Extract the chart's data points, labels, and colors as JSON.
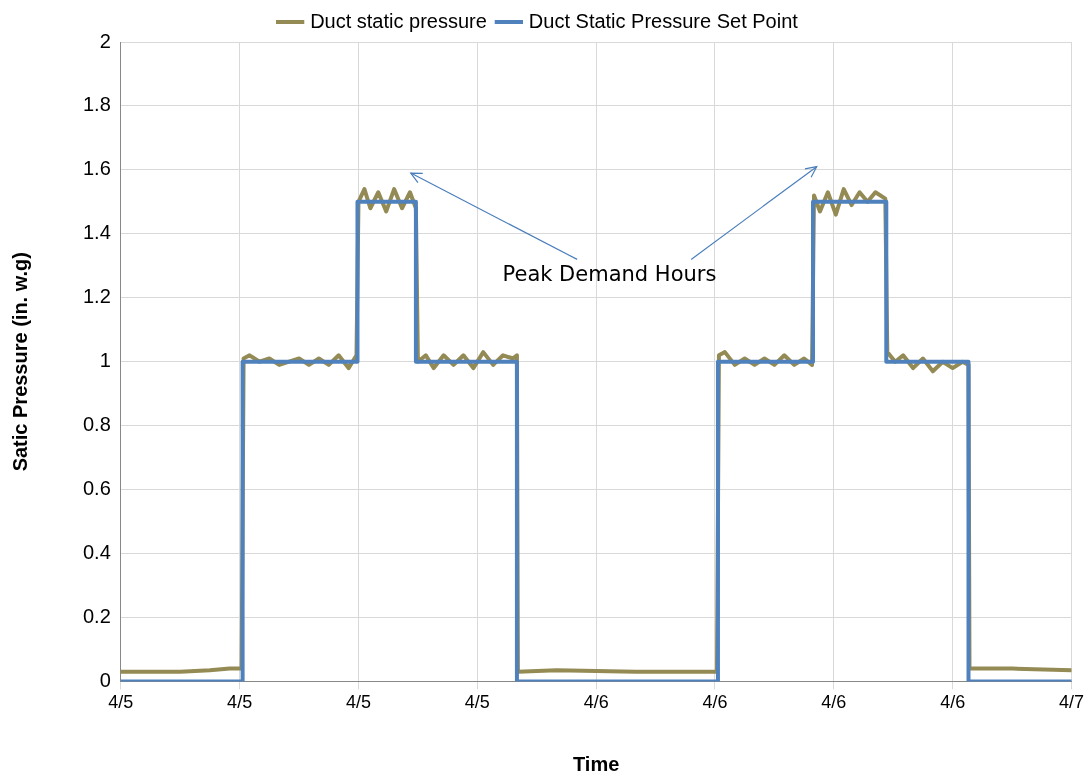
{
  "chart_data": {
    "type": "line",
    "xlabel": "Time",
    "ylabel": "Satic Pressure (in. w.g)",
    "annotations": [
      "Peak Demand Hours"
    ],
    "xlim": [
      "--04-05T00:00",
      "--04-07T00:00"
    ],
    "xticks": [
      {
        "value": "--04-05T00:00",
        "label": "4/5"
      },
      {
        "value": "--04-05T06:00",
        "label": "4/5"
      },
      {
        "value": "--04-05T12:00",
        "label": "4/5"
      },
      {
        "value": "--04-05T18:00",
        "label": "4/5"
      },
      {
        "value": "--04-06T00:00",
        "label": "4/6"
      },
      {
        "value": "--04-06T06:00",
        "label": "4/6"
      },
      {
        "value": "--04-06T12:00",
        "label": "4/6"
      },
      {
        "value": "--04-06T18:00",
        "label": "4/6"
      },
      {
        "value": "--04-07T00:00",
        "label": "4/7"
      }
    ],
    "ylim": [
      0,
      2
    ],
    "yticks": [
      0,
      0.2,
      0.4,
      0.6,
      0.8,
      1,
      1.2,
      1.4,
      1.6,
      1.8,
      2
    ],
    "grid": true,
    "legend": "top",
    "marker": "none",
    "line_style": "solid",
    "series": [
      {
        "name": "Duct static pressure",
        "color": "#948a54",
        "type": "line",
        "x": [
          "--04-05T00:00",
          "--04-05T03:00",
          "--04-05T04:30",
          "--04-05T05:30",
          "--04-05T06:06",
          "--04-05T06:12",
          "--04-05T06:30",
          "--04-05T07:00",
          "--04-05T07:30",
          "--04-05T08:00",
          "--04-05T08:30",
          "--04-05T09:00",
          "--04-05T09:30",
          "--04-05T10:00",
          "--04-05T10:30",
          "--04-05T11:00",
          "--04-05T11:30",
          "--04-05T11:54",
          "--04-05T12:00",
          "--04-05T12:18",
          "--04-05T12:36",
          "--04-05T13:00",
          "--04-05T13:24",
          "--04-05T13:48",
          "--04-05T14:12",
          "--04-05T14:36",
          "--04-05T14:54",
          "--04-05T15:00",
          "--04-05T15:24",
          "--04-05T15:48",
          "--04-05T16:18",
          "--04-05T16:48",
          "--04-05T17:18",
          "--04-05T17:48",
          "--04-05T18:18",
          "--04-05T18:48",
          "--04-05T19:18",
          "--04-05T19:48",
          "--04-05T20:00",
          "--04-05T20:03",
          "--04-05T22:00",
          "--04-06T02:00",
          "--04-06T06:06",
          "--04-06T06:12",
          "--04-06T06:30",
          "--04-06T07:00",
          "--04-06T07:30",
          "--04-06T08:00",
          "--04-06T08:30",
          "--04-06T09:00",
          "--04-06T09:30",
          "--04-06T10:00",
          "--04-06T10:30",
          "--04-06T10:54",
          "--04-06T11:00",
          "--04-06T11:18",
          "--04-06T11:42",
          "--04-06T12:06",
          "--04-06T12:30",
          "--04-06T12:54",
          "--04-06T13:18",
          "--04-06T13:42",
          "--04-06T14:06",
          "--04-06T14:36",
          "--04-06T14:42",
          "--04-06T15:06",
          "--04-06T15:30",
          "--04-06T16:00",
          "--04-06T16:30",
          "--04-06T17:00",
          "--04-06T17:30",
          "--04-06T18:00",
          "--04-06T18:30",
          "--04-06T18:48",
          "--04-06T18:51",
          "--04-06T21:00",
          "--04-07T00:00"
        ],
        "values": [
          0.03,
          0.03,
          0.035,
          0.04,
          0.04,
          1.01,
          1.02,
          1,
          1.01,
          0.99,
          1,
          1.01,
          0.99,
          1.01,
          0.99,
          1.02,
          0.98,
          1.02,
          1.5,
          1.54,
          1.48,
          1.53,
          1.47,
          1.54,
          1.48,
          1.53,
          1.48,
          1,
          1.02,
          0.98,
          1.02,
          0.99,
          1.02,
          0.98,
          1.03,
          0.99,
          1.02,
          1.01,
          1.02,
          0.03,
          0.035,
          0.03,
          0.03,
          1.02,
          1.03,
          0.99,
          1.01,
          0.99,
          1.01,
          0.99,
          1.02,
          0.99,
          1.01,
          0.99,
          1.52,
          1.47,
          1.53,
          1.46,
          1.54,
          1.49,
          1.53,
          1.5,
          1.53,
          1.51,
          1.03,
          1,
          1.02,
          0.98,
          1.01,
          0.97,
          1,
          0.98,
          1,
          0.99,
          0.04,
          0.04,
          0.035
        ]
      },
      {
        "name": "Duct Static Pressure Set Point",
        "color": "#4f81bd",
        "type": "step",
        "x": [
          "--04-05T00:00",
          "--04-05T06:09",
          "--04-05T11:57",
          "--04-05T14:54",
          "--04-05T20:00",
          "--04-06T06:09",
          "--04-06T10:57",
          "--04-06T14:39",
          "--04-06T18:48",
          "--04-07T00:00"
        ],
        "values": [
          0,
          1,
          1.5,
          1,
          0,
          1,
          1.5,
          1,
          0,
          0
        ]
      }
    ]
  }
}
